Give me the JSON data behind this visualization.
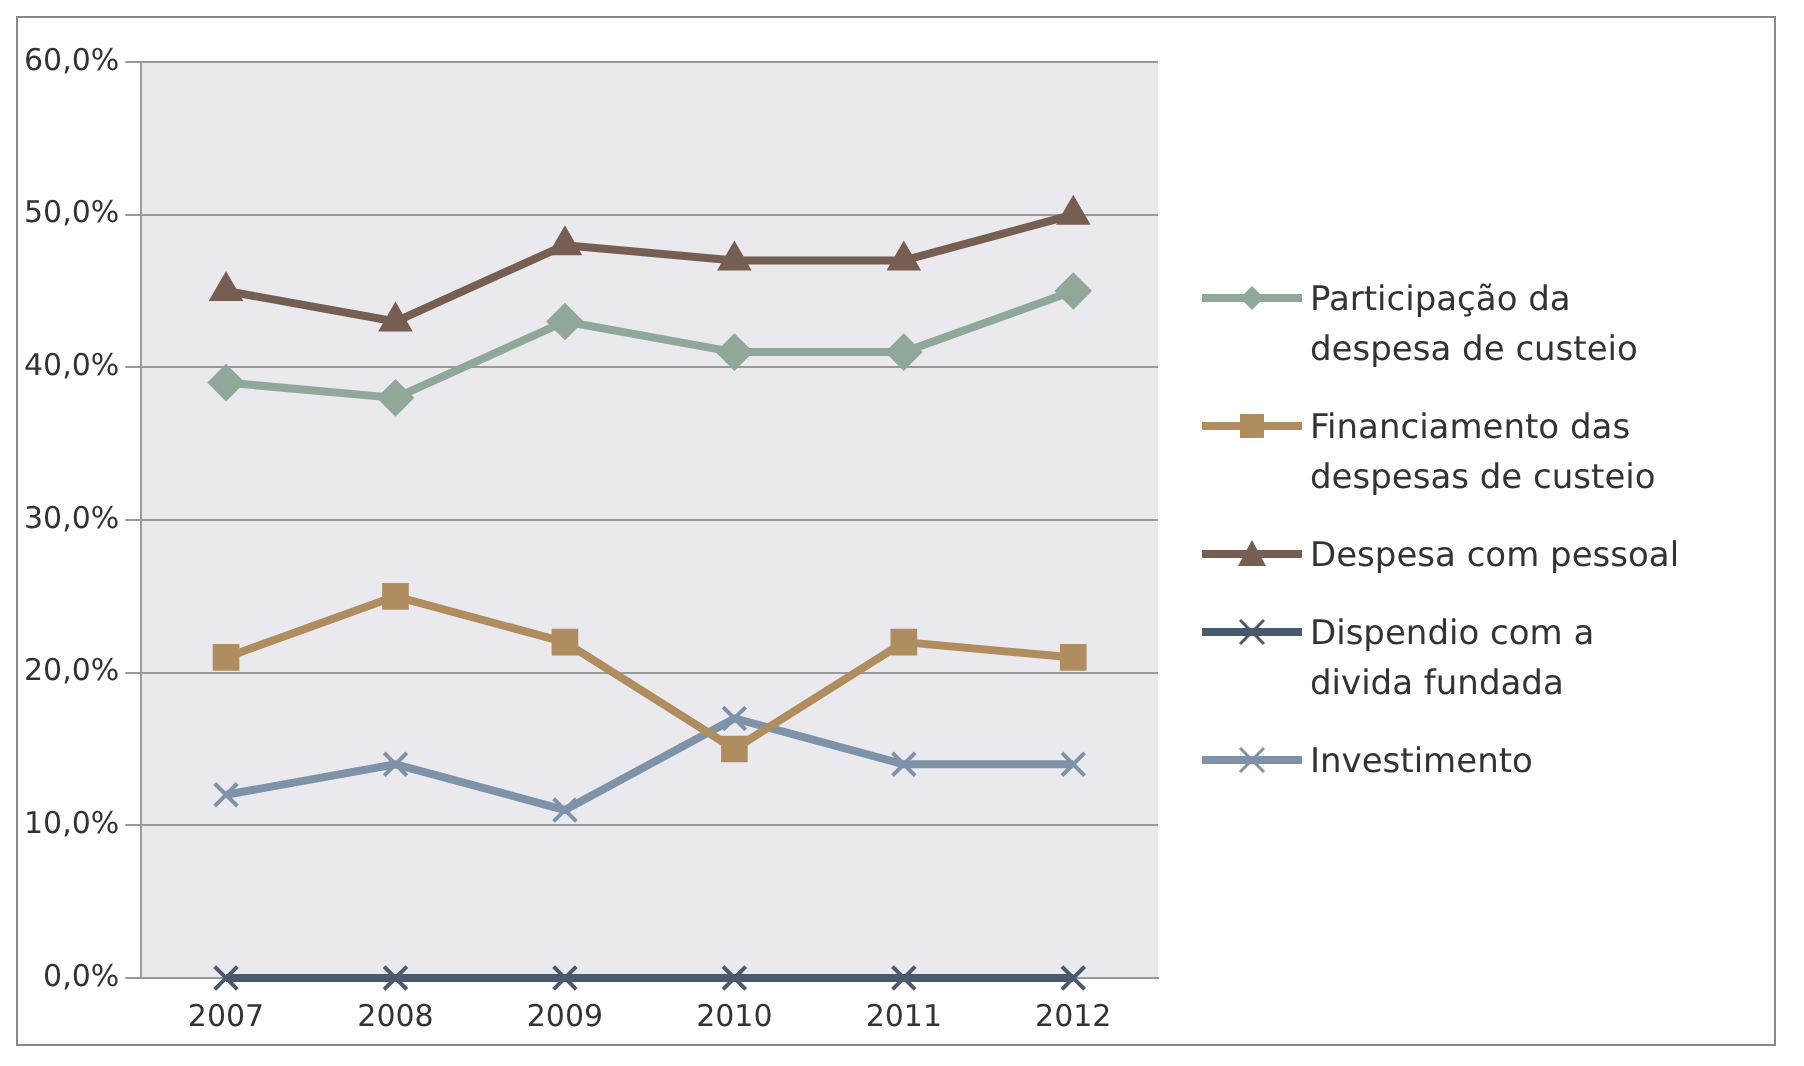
{
  "chart_data": {
    "type": "line",
    "categories": [
      "2007",
      "2008",
      "2009",
      "2010",
      "2011",
      "2012"
    ],
    "series": [
      {
        "name": "Participação da despesa de custeio",
        "color": "#8fa89a",
        "marker": "diamond",
        "values": [
          39,
          38,
          43,
          41,
          41,
          45
        ]
      },
      {
        "name": "Financiamento das despesas de custeio",
        "color": "#b08d5f",
        "marker": "square",
        "values": [
          21,
          25,
          22,
          15,
          22,
          21
        ]
      },
      {
        "name": "Despesa com pessoal",
        "color": "#765f52",
        "marker": "triangle",
        "values": [
          45,
          43,
          48,
          47,
          47,
          50
        ]
      },
      {
        "name": "Dispendio com a divida fundada",
        "color": "#4a5a6e",
        "marker": "cross",
        "values": [
          0,
          0,
          0,
          0,
          0,
          0
        ]
      },
      {
        "name": "Investimento",
        "color": "#7f93a8",
        "marker": "cross",
        "values": [
          12,
          14,
          11,
          17,
          14,
          14
        ]
      }
    ],
    "ylim": [
      0,
      60
    ],
    "yticks": [
      {
        "value": 0,
        "label": "0,0%"
      },
      {
        "value": 10,
        "label": "10,0%"
      },
      {
        "value": 20,
        "label": "20,0%"
      },
      {
        "value": 30,
        "label": "30,0%"
      },
      {
        "value": 40,
        "label": "40,0%"
      },
      {
        "value": 50,
        "label": "50,0%"
      },
      {
        "value": 60,
        "label": "60,0%"
      }
    ],
    "grid": "y",
    "legend": "right"
  }
}
